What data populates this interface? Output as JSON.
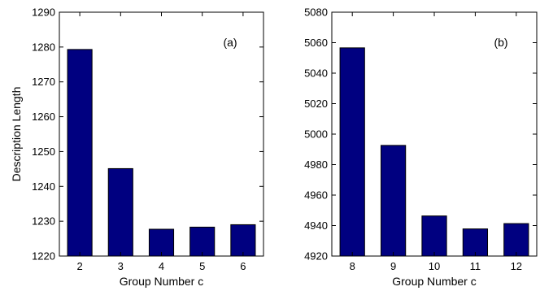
{
  "chart_data": [
    {
      "type": "bar",
      "panel_label": "(a)",
      "categories": [
        "2",
        "3",
        "4",
        "5",
        "6"
      ],
      "values": [
        1279.3,
        1245.1,
        1227.7,
        1228.3,
        1229.0
      ],
      "title": "",
      "xlabel": "Group Number c",
      "ylabel": "Description Length",
      "ylim": [
        1220,
        1290
      ],
      "yticks": [
        1220,
        1230,
        1240,
        1250,
        1260,
        1270,
        1280,
        1290
      ],
      "bar_color": "#000080",
      "grid": false,
      "legend": "none"
    },
    {
      "type": "bar",
      "panel_label": "(b)",
      "categories": [
        "8",
        "9",
        "10",
        "11",
        "12"
      ],
      "values": [
        5056.6,
        4992.6,
        4946.3,
        4937.8,
        4941.3
      ],
      "title": "",
      "xlabel": "Group Number c",
      "ylabel": "",
      "ylim": [
        4920,
        5080
      ],
      "yticks": [
        4920,
        4940,
        4960,
        4980,
        5000,
        5020,
        5040,
        5060,
        5080
      ],
      "bar_color": "#000080",
      "grid": false,
      "legend": "none"
    }
  ]
}
